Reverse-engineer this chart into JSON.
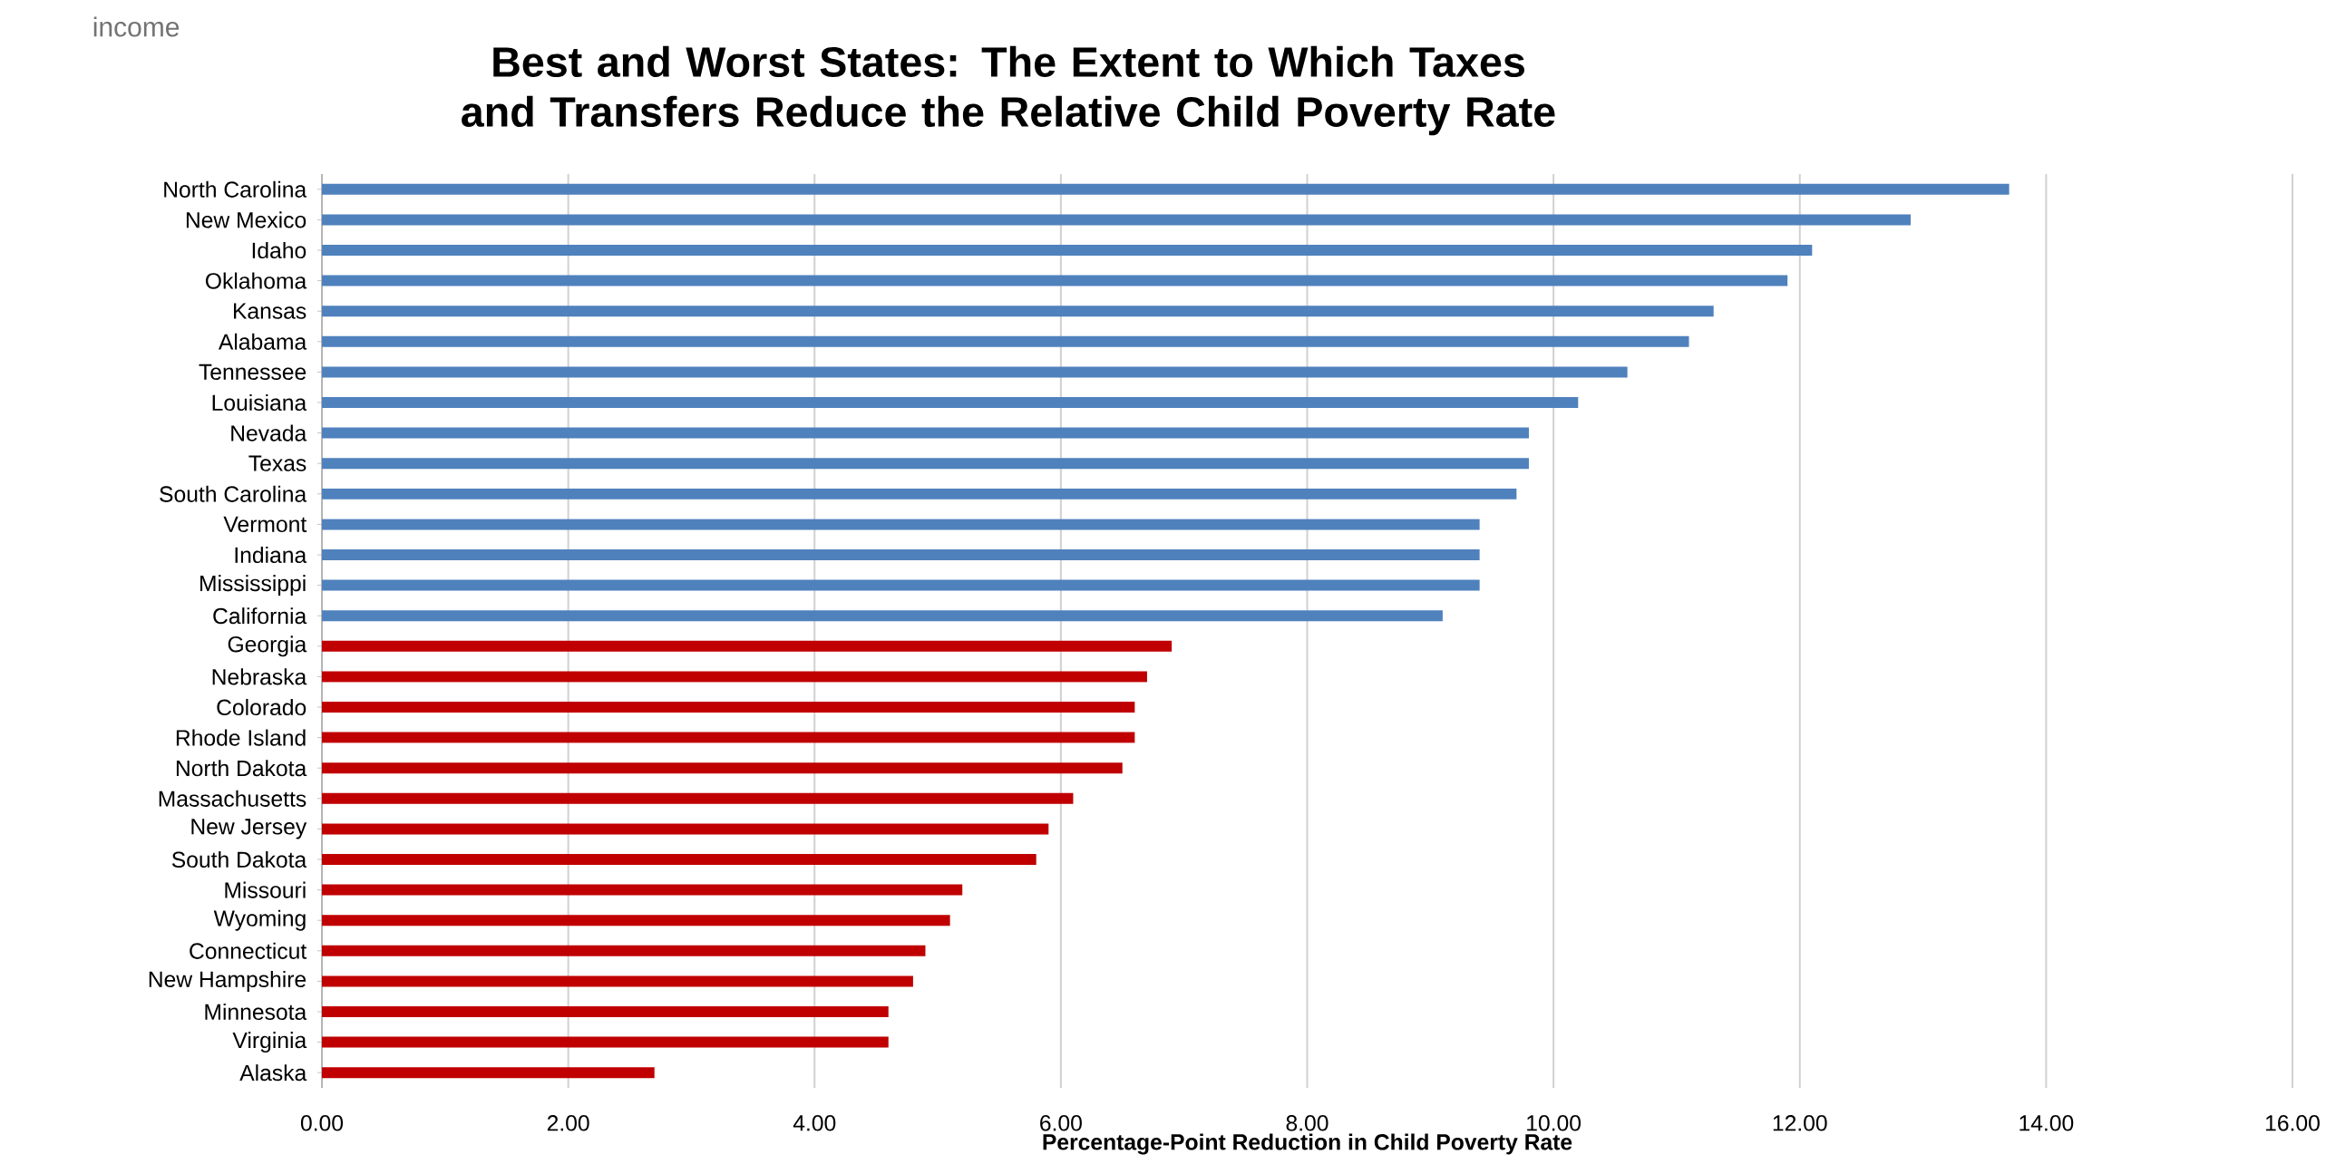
{
  "chart_data": {
    "type": "bar",
    "orientation": "horizontal",
    "title": "Best and Worst States: The Extent to Which Taxes and Transfers Reduce the Relative Child Poverty Rate",
    "xlabel": "Percentage-Point Reduction in Child Poverty Rate",
    "annotations": [
      "income"
    ],
    "categories": [
      "North Carolina",
      "New Mexico",
      "Idaho",
      "Oklahoma",
      "Kansas",
      "Alabama",
      "Tennessee",
      "Louisiana",
      "Nevada",
      "Texas",
      "South Carolina",
      "Vermont",
      "Indiana",
      "Mississippi",
      "California",
      "Georgia",
      "Nebraska",
      "Colorado",
      "Rhode Island",
      "North Dakota",
      "Massachusetts",
      "New Jersey",
      "South Dakota",
      "Missouri",
      "Wyoming",
      "Connecticut",
      "New Hampshire",
      "Minnesota",
      "Virginia",
      "Alaska"
    ],
    "values": [
      13.7,
      12.9,
      12.1,
      11.9,
      11.3,
      11.1,
      10.6,
      10.2,
      9.8,
      9.8,
      9.7,
      9.4,
      9.4,
      9.4,
      9.1,
      6.9,
      6.7,
      6.6,
      6.6,
      6.5,
      6.1,
      5.9,
      5.8,
      5.2,
      5.1,
      4.9,
      4.8,
      4.6,
      4.6,
      2.7
    ],
    "colors": [
      "#4f81bd",
      "#4f81bd",
      "#4f81bd",
      "#4f81bd",
      "#4f81bd",
      "#4f81bd",
      "#4f81bd",
      "#4f81bd",
      "#4f81bd",
      "#4f81bd",
      "#4f81bd",
      "#4f81bd",
      "#4f81bd",
      "#4f81bd",
      "#4f81bd",
      "#c00000",
      "#c00000",
      "#c00000",
      "#c00000",
      "#c00000",
      "#c00000",
      "#c00000",
      "#c00000",
      "#c00000",
      "#c00000",
      "#c00000",
      "#c00000",
      "#c00000",
      "#c00000",
      "#c00000"
    ],
    "xlim": [
      0,
      16
    ],
    "xticks": [
      {
        "value": 0,
        "label": "0.00"
      },
      {
        "value": 2,
        "label": "2.00"
      },
      {
        "value": 4,
        "label": "4.00"
      },
      {
        "value": 6,
        "label": "6.00"
      },
      {
        "value": 8,
        "label": "8.00"
      },
      {
        "value": 10,
        "label": "10.00"
      },
      {
        "value": 12,
        "label": "12.00"
      },
      {
        "value": 14,
        "label": "14.00"
      },
      {
        "value": 16,
        "label": "16.00"
      }
    ],
    "grid": "x"
  }
}
